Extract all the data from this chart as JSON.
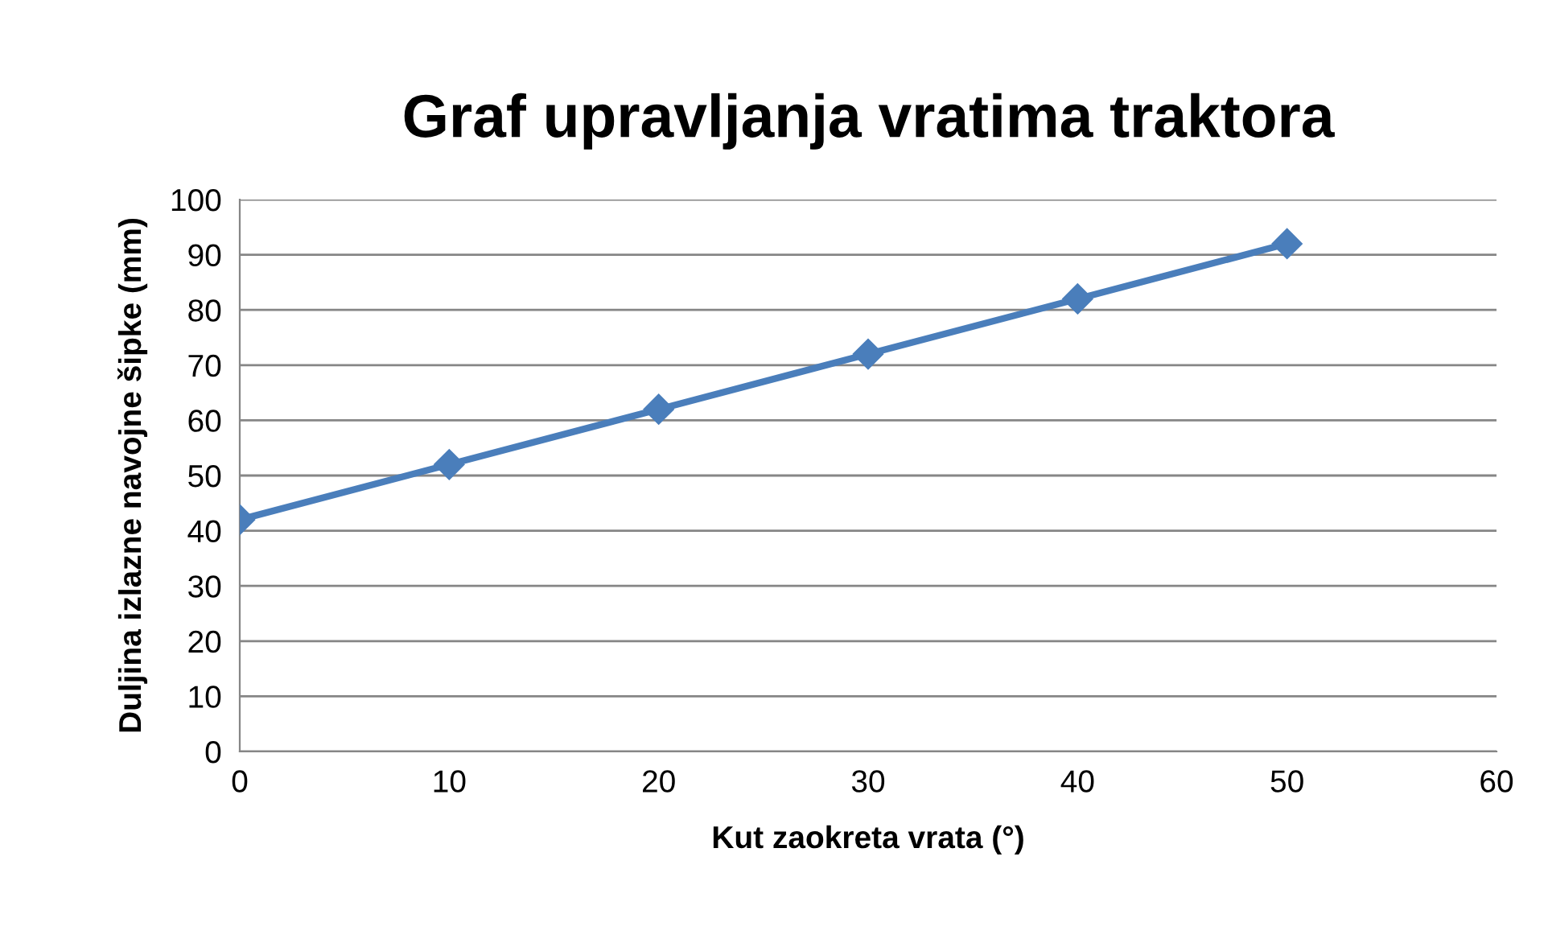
{
  "chart_data": {
    "type": "line",
    "title": "Graf upravljanja vratima traktora",
    "xlabel": "Kut zaokreta vrata (°)",
    "ylabel": "Duljina izlazne navojne šipke (mm)",
    "x": [
      0,
      10,
      20,
      30,
      40,
      50
    ],
    "series": [
      {
        "color": "#4a7ebb",
        "values": [
          42,
          52,
          62,
          72,
          82,
          92
        ]
      }
    ],
    "xlim": [
      0,
      60
    ],
    "xticks": [
      0,
      10,
      20,
      30,
      40,
      50,
      60
    ],
    "ylim": [
      0,
      100
    ],
    "yticks": [
      0,
      10,
      20,
      30,
      40,
      50,
      60,
      70,
      80,
      90,
      100
    ],
    "grid": "y",
    "marker": "diamond",
    "line_style": "solid",
    "legend": false
  }
}
